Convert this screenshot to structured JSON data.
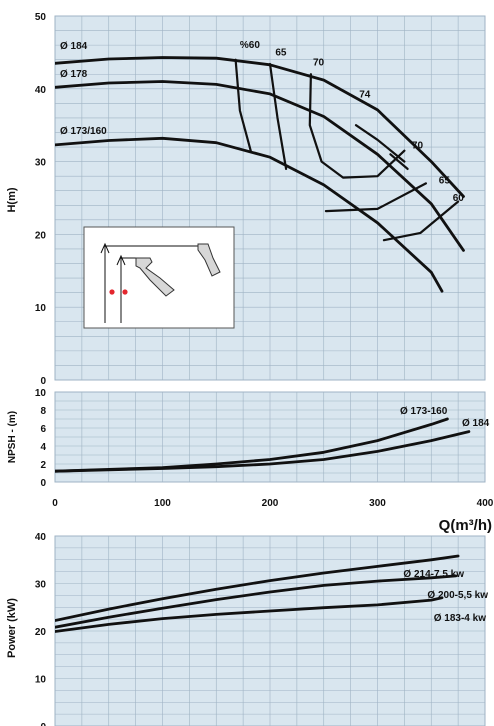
{
  "colors": {
    "background": "#d9e6ef",
    "grid": "#9fb3c4",
    "curve": "#111111",
    "inset_bg": "#ffffff",
    "marker": "#e3262e"
  },
  "chart_data": [
    {
      "type": "line",
      "panel": "head",
      "ylabel": "H(m)",
      "xlim": [
        0,
        400
      ],
      "ylim": [
        0,
        50
      ],
      "yticks": [
        0,
        10,
        20,
        30,
        40,
        50
      ],
      "grid": true,
      "series": [
        {
          "name": "Ø 184",
          "x": [
            0,
            50,
            100,
            150,
            200,
            250,
            300,
            350,
            380
          ],
          "y": [
            43.5,
            44.1,
            44.3,
            44.2,
            43.3,
            41.2,
            37.1,
            30.0,
            25.2
          ]
        },
        {
          "name": "Ø 178",
          "x": [
            0,
            50,
            100,
            150,
            200,
            250,
            300,
            350,
            380
          ],
          "y": [
            40.2,
            40.8,
            41.0,
            40.6,
            39.3,
            36.2,
            31.0,
            24.2,
            17.8
          ]
        },
        {
          "name": "Ø 173/160",
          "x": [
            0,
            50,
            100,
            150,
            200,
            250,
            300,
            350,
            360
          ],
          "y": [
            32.3,
            32.9,
            33.2,
            32.6,
            30.6,
            26.8,
            21.6,
            14.8,
            12.2
          ]
        }
      ],
      "efficiency_curves": [
        {
          "label": "%60",
          "x": [
            168,
            172,
            182
          ],
          "y": [
            44.0,
            37.0,
            31.5
          ]
        },
        {
          "label": "65",
          "x": [
            200,
            207,
            215
          ],
          "y": [
            43.4,
            36.0,
            29.0
          ]
        },
        {
          "label": "70",
          "x": [
            238,
            237,
            248,
            268,
            300,
            325
          ],
          "y": [
            42.0,
            35.0,
            30.0,
            27.8,
            28.0,
            31.5
          ]
        },
        {
          "label": "74",
          "x": [
            280,
            300,
            325
          ],
          "y": [
            35.0,
            33.0,
            30.0
          ]
        },
        {
          "label": "70",
          "x": [
            312,
            328
          ],
          "y": [
            31.0,
            29.0
          ]
        },
        {
          "label": "65",
          "x": [
            252,
            300,
            345
          ],
          "y": [
            23.2,
            23.5,
            27.0
          ]
        },
        {
          "label": "60",
          "x": [
            306,
            340,
            375
          ],
          "y": [
            19.2,
            20.2,
            24.5
          ]
        }
      ],
      "efficiency_labels": [
        {
          "text": "%60",
          "x": 172,
          "y": 45.6
        },
        {
          "text": "65",
          "x": 205,
          "y": 44.6
        },
        {
          "text": "70",
          "x": 240,
          "y": 43.2
        },
        {
          "text": "74",
          "x": 283,
          "y": 38.8
        },
        {
          "text": "70",
          "x": 332,
          "y": 31.8
        },
        {
          "text": "65",
          "x": 357,
          "y": 27.0
        },
        {
          "text": "60",
          "x": 370,
          "y": 24.6
        }
      ]
    },
    {
      "type": "line",
      "panel": "npsh",
      "ylabel": "NPSH - (m)",
      "xlabel": "Q(m³/h)",
      "xlim": [
        0,
        400
      ],
      "ylim": [
        0,
        10
      ],
      "yticks": [
        0,
        2,
        4,
        6,
        8,
        10
      ],
      "xticks": [
        0,
        100,
        200,
        300,
        400
      ],
      "grid": true,
      "series": [
        {
          "name": "Ø 173-160",
          "x": [
            0,
            100,
            150,
            200,
            250,
            300,
            350,
            365
          ],
          "y": [
            1.2,
            1.6,
            2.0,
            2.5,
            3.3,
            4.6,
            6.4,
            7.0
          ]
        },
        {
          "name": "Ø 184",
          "x": [
            0,
            100,
            150,
            200,
            250,
            300,
            350,
            385
          ],
          "y": [
            1.2,
            1.5,
            1.7,
            2.0,
            2.5,
            3.4,
            4.6,
            5.6
          ]
        }
      ]
    },
    {
      "type": "line",
      "panel": "power",
      "ylabel": "Power (kW)",
      "xlim": [
        0,
        400
      ],
      "ylim": [
        0,
        40
      ],
      "yticks": [
        0,
        10,
        20,
        30,
        40
      ],
      "grid": true,
      "series": [
        {
          "name": "Ø 214-7,5 kw",
          "x": [
            0,
            50,
            100,
            150,
            200,
            250,
            300,
            350,
            375
          ],
          "y": [
            22.2,
            24.6,
            26.8,
            28.8,
            30.6,
            32.2,
            33.6,
            35.0,
            35.8
          ]
        },
        {
          "name": "Ø 200-5,5 kw",
          "x": [
            0,
            50,
            100,
            150,
            200,
            250,
            300,
            350,
            373
          ],
          "y": [
            20.8,
            22.9,
            24.8,
            26.6,
            28.2,
            29.6,
            30.5,
            31.2,
            31.6
          ]
        },
        {
          "name": "Ø 183-4 kw",
          "x": [
            0,
            50,
            100,
            150,
            200,
            250,
            300,
            350,
            360
          ],
          "y": [
            19.9,
            21.4,
            22.6,
            23.5,
            24.2,
            24.9,
            25.5,
            26.5,
            27.0
          ]
        }
      ]
    }
  ]
}
